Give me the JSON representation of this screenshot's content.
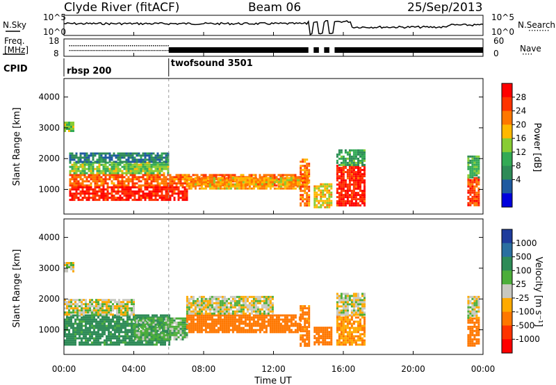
{
  "header": {
    "station": "Clyde River (fitACF)",
    "beam": "Beam 06",
    "date": "25/Sep/2013"
  },
  "strip_labels": {
    "nsky": "N.Sky",
    "nsearch": "N.Search",
    "nsearch_dots": "········",
    "freq_line1": "Freq.",
    "freq_line2": "[MHz]",
    "nave": "Nave",
    "nave_dots": "····",
    "cpid": "CPID"
  },
  "cpid_segments": [
    {
      "name": "rbsp 200",
      "start_hour": 0
    },
    {
      "name": "twofsound 3501",
      "start_hour": 6
    }
  ],
  "power_colorbar": {
    "label": "Power [dB]",
    "ticks": [
      "28",
      "24",
      "20",
      "16",
      "12",
      "8",
      "4"
    ],
    "colors": [
      "#ff0000",
      "#ff3300",
      "#ff7700",
      "#ffb800",
      "#88cc33",
      "#33aa55",
      "#2e8b57",
      "#1e5aa0",
      "#0000dd"
    ]
  },
  "velocity_colorbar": {
    "label": "Velocity [m s⁻¹]",
    "ticks": [
      "1000",
      "500",
      "100",
      "25",
      "-25",
      "-100",
      "-500",
      "-1000"
    ],
    "colors": [
      "#1e3c9c",
      "#2a6fa0",
      "#2e8b57",
      "#4cae3a",
      "#c8c8c0",
      "#ffaa00",
      "#ff7700",
      "#ff3300",
      "#ff0000"
    ]
  },
  "chart_data": {
    "type": "heatmap",
    "x_label": "Time UT",
    "y_label": "Slant Range [km]",
    "x_ticks": [
      "00:00",
      "04:00",
      "08:00",
      "12:00",
      "16:00",
      "20:00",
      "00:00"
    ],
    "x_range_hours": [
      0,
      24
    ],
    "y_range_km": [
      200,
      4600
    ],
    "y_ticks": [
      1000,
      2000,
      3000,
      4000
    ],
    "nsky_axis": {
      "ticks": [
        "10^5",
        "10^0"
      ]
    },
    "nsearch_axis": {
      "ticks": [
        "10^5",
        "10^0"
      ]
    },
    "freq_axis": {
      "ticks": [
        18,
        8
      ],
      "range_mhz": [
        8,
        18
      ]
    },
    "nave_axis": {
      "ticks": [
        60,
        0
      ],
      "range": [
        0,
        60
      ]
    },
    "panels": [
      {
        "quantity": "Power",
        "unit": "dB",
        "bands": [
          {
            "t0": 0.3,
            "t1": 14.0,
            "r0": 1100,
            "r1": 1500,
            "value": 24
          },
          {
            "t0": 0.3,
            "t1": 7.0,
            "r0": 650,
            "r1": 1100,
            "value": 28
          },
          {
            "t0": 0.3,
            "t1": 6.0,
            "r0": 1500,
            "r1": 1900,
            "value": 14
          },
          {
            "t0": 0.3,
            "t1": 6.0,
            "r0": 1900,
            "r1": 2200,
            "value": 6
          },
          {
            "t0": 7.0,
            "t1": 13.5,
            "r0": 1000,
            "r1": 1400,
            "value": 20
          },
          {
            "t0": 13.5,
            "t1": 14.0,
            "r0": 500,
            "r1": 2000,
            "value": 22
          },
          {
            "t0": 14.3,
            "t1": 15.3,
            "r0": 450,
            "r1": 1200,
            "value": 18
          },
          {
            "t0": 15.6,
            "t1": 17.2,
            "r0": 500,
            "r1": 1800,
            "value": 28
          },
          {
            "t0": 15.6,
            "t1": 17.2,
            "r0": 1800,
            "r1": 2300,
            "value": 10
          },
          {
            "t0": 23.1,
            "t1": 23.7,
            "r0": 500,
            "r1": 1400,
            "value": 26
          },
          {
            "t0": 23.1,
            "t1": 23.7,
            "r0": 1400,
            "r1": 2100,
            "value": 12
          },
          {
            "t0": 0.0,
            "t1": 0.5,
            "r0": 2900,
            "r1": 3200,
            "value": 14
          }
        ]
      },
      {
        "quantity": "Velocity",
        "unit": "m s^-1",
        "bands": [
          {
            "t0": 0.0,
            "t1": 6.0,
            "r0": 550,
            "r1": 1500,
            "value": 150
          },
          {
            "t0": 0.0,
            "t1": 4.0,
            "r0": 1500,
            "r1": 2000,
            "value": 0
          },
          {
            "t0": 4.0,
            "t1": 7.0,
            "r0": 700,
            "r1": 1400,
            "value": 60
          },
          {
            "t0": 7.0,
            "t1": 13.5,
            "r0": 900,
            "r1": 1500,
            "value": -200
          },
          {
            "t0": 13.5,
            "t1": 14.0,
            "r0": 500,
            "r1": 1800,
            "value": -150
          },
          {
            "t0": 14.3,
            "t1": 15.3,
            "r0": 500,
            "r1": 1100,
            "value": -200
          },
          {
            "t0": 15.6,
            "t1": 17.2,
            "r0": 550,
            "r1": 1500,
            "value": -100
          },
          {
            "t0": 15.6,
            "t1": 17.2,
            "r0": 1500,
            "r1": 2200,
            "value": 0
          },
          {
            "t0": 7.0,
            "t1": 12.0,
            "r0": 1500,
            "r1": 2100,
            "value": 0
          },
          {
            "t0": 23.1,
            "t1": 23.7,
            "r0": 500,
            "r1": 1400,
            "value": -200
          },
          {
            "t0": 23.1,
            "t1": 23.7,
            "r0": 1400,
            "r1": 2100,
            "value": 0
          },
          {
            "t0": 0.0,
            "t1": 0.5,
            "r0": 2900,
            "r1": 3200,
            "value": 0
          }
        ]
      }
    ]
  }
}
